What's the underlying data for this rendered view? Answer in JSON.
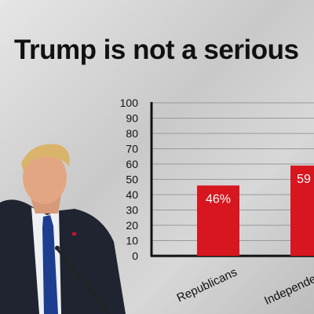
{
  "headline": "Trump is not a serious",
  "chart_data": {
    "type": "bar",
    "categories": [
      "Republicans",
      "Independents"
    ],
    "values": [
      46,
      59
    ],
    "data_labels": [
      "46%",
      "59"
    ],
    "ylim": [
      0,
      100
    ],
    "yticks": [
      0,
      10,
      20,
      30,
      40,
      50,
      60,
      70,
      80,
      90,
      100
    ],
    "grid": true,
    "bar_color": "#d7161f"
  }
}
